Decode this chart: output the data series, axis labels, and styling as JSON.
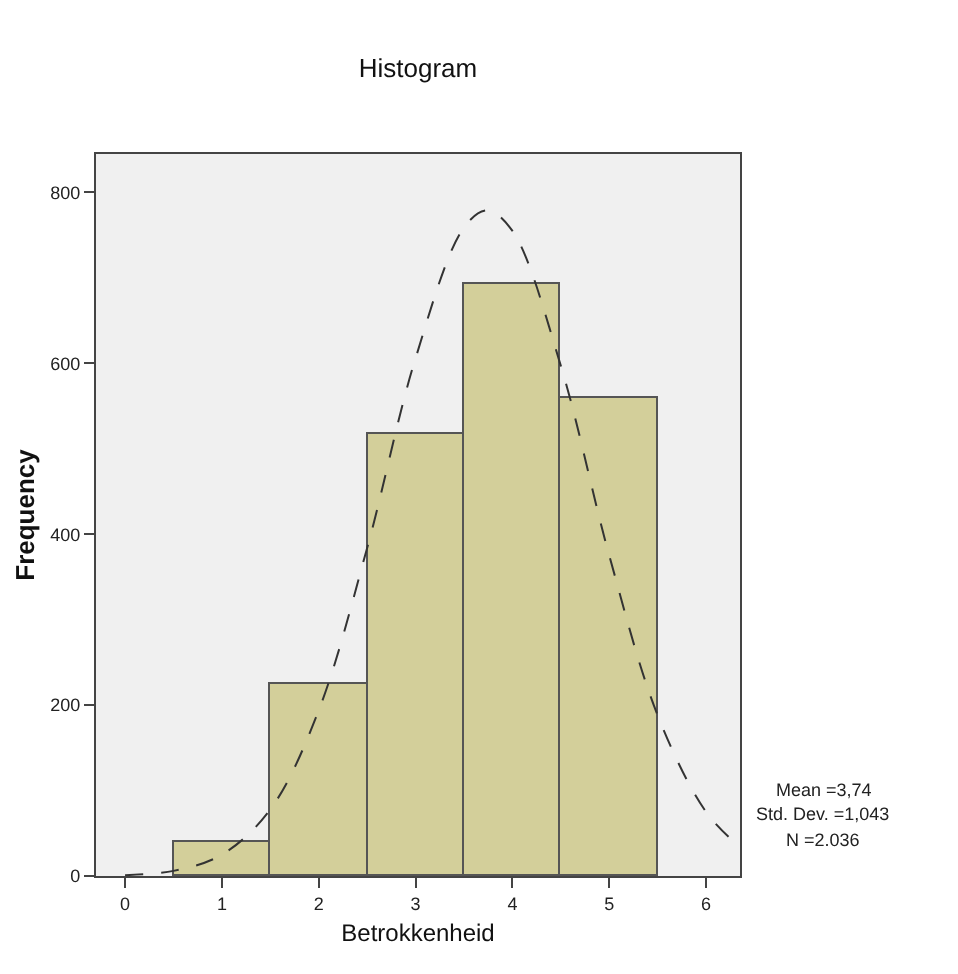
{
  "chart_data": {
    "type": "histogram",
    "title": "Histogram",
    "xlabel": "Betrokkenheid",
    "ylabel": "Frequency",
    "bins": [
      0.5,
      1.5,
      2.5,
      3.5,
      4.5,
      5.5
    ],
    "values": [
      40,
      225,
      517,
      694,
      560
    ],
    "color": "#d3cf9a",
    "series": [
      {
        "type": "line",
        "color": "#333333",
        "line_style": "dashed",
        "x": [
          0,
          0.5,
          1,
          1.5,
          2,
          2.5,
          3,
          3.5,
          3.74,
          4,
          4.5,
          5,
          5.5,
          6,
          6.35
        ],
        "values": [
          1,
          6,
          25,
          78,
          194,
          384,
          606,
          759,
          779,
          755,
          597,
          375,
          188,
          75,
          34
        ]
      }
    ],
    "xlim": [
      -0.3,
      6.35
    ],
    "xticks": [
      0,
      1,
      2,
      3,
      4,
      5,
      6
    ],
    "ylim": [
      0,
      845
    ],
    "yticks": [
      0,
      200,
      400,
      600,
      800
    ],
    "grid": false,
    "annotations": [
      "Mean =3,74",
      "Std. Dev. =1,043",
      "N =2.036"
    ]
  }
}
